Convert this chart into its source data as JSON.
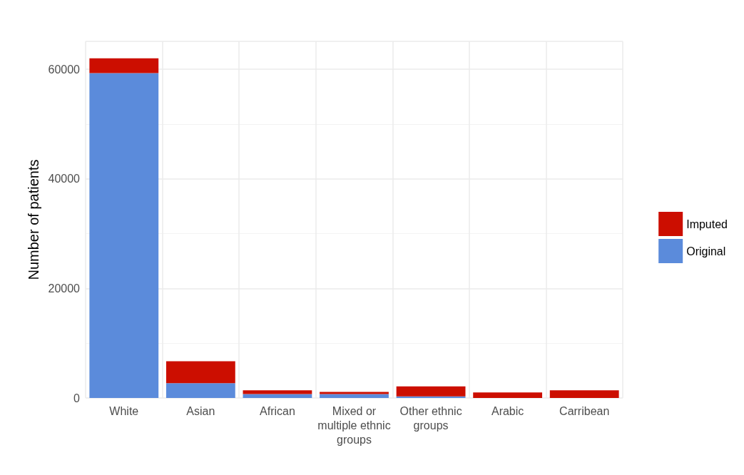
{
  "chart_data": {
    "type": "bar",
    "ylabel": "Number of patients",
    "categories": [
      "White",
      "Asian",
      "African",
      "Mixed or\nmultiple ethnic\ngroups",
      "Other ethnic\ngroups",
      "Arabic",
      "Carribean"
    ],
    "series": [
      {
        "name": "Original",
        "color": "#5b8bdb",
        "values": [
          59300,
          2700,
          700,
          700,
          300,
          0,
          0
        ]
      },
      {
        "name": "Imputed",
        "color": "#cc0e00",
        "values": [
          2700,
          4000,
          700,
          400,
          1800,
          1000,
          1400
        ]
      }
    ],
    "stacked": true,
    "ylim": [
      0,
      65100
    ],
    "yticks": [
      0,
      20000,
      40000,
      60000
    ],
    "grid": true,
    "legend": "right"
  }
}
